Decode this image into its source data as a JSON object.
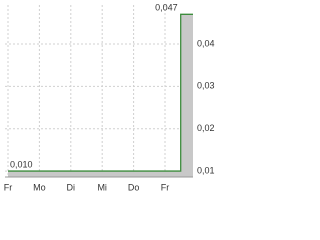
{
  "chart_data": {
    "type": "area",
    "step": true,
    "categories": [
      "Fr",
      null,
      "Mo",
      null,
      "Di",
      null,
      "Mi",
      null,
      "Do",
      null,
      "Fr",
      null
    ],
    "series": [
      {
        "color": "#3c8c3c",
        "fill": "#c8c8c8",
        "values": [
          0.01,
          0.01,
          0.01,
          0.01,
          0.01,
          0.01,
          0.01,
          0.01,
          0.01,
          0.01,
          0.01,
          0.047
        ],
        "value_labels": [
          "0,010",
          null,
          null,
          null,
          null,
          null,
          null,
          null,
          null,
          null,
          null,
          "0,047"
        ]
      }
    ],
    "ylim": [
      0.0086,
      0.0492
    ],
    "yticks": [
      {
        "value": 0.01,
        "label": "0,01"
      },
      {
        "value": 0.02,
        "label": "0,02"
      },
      {
        "value": 0.03,
        "label": "0,03"
      },
      {
        "value": 0.04,
        "label": "0,04"
      }
    ],
    "grid": true
  }
}
